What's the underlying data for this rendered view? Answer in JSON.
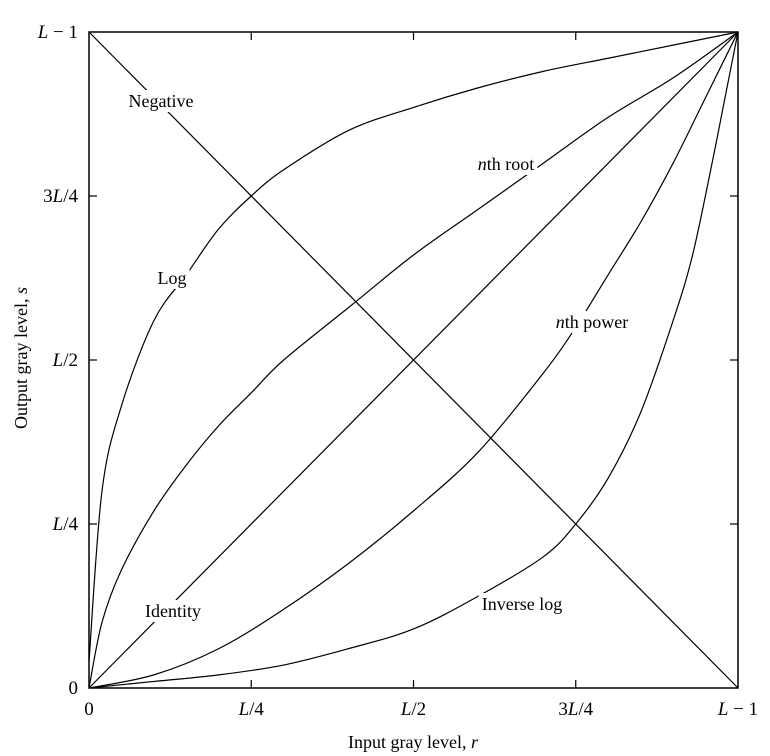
{
  "chart_data": {
    "type": "line",
    "xlabel": {
      "prefix": "Input gray level, ",
      "var": "r"
    },
    "ylabel": {
      "prefix": "Output gray level, ",
      "var": "s"
    },
    "xlim": [
      0,
      1
    ],
    "ylim": [
      0,
      1
    ],
    "x_ticks": [
      {
        "value": 0,
        "parts": [
          {
            "t": "0",
            "i": false
          }
        ]
      },
      {
        "value": 0.25,
        "parts": [
          {
            "t": "L",
            "i": true
          },
          {
            "t": "/4",
            "i": false
          }
        ]
      },
      {
        "value": 0.5,
        "parts": [
          {
            "t": "L",
            "i": true
          },
          {
            "t": "/2",
            "i": false
          }
        ]
      },
      {
        "value": 0.75,
        "parts": [
          {
            "t": "3",
            "i": false
          },
          {
            "t": "L",
            "i": true
          },
          {
            "t": "/4",
            "i": false
          }
        ]
      },
      {
        "value": 1,
        "parts": [
          {
            "t": "L",
            "i": true
          },
          {
            "t": " − 1",
            "i": false
          }
        ]
      }
    ],
    "y_ticks": [
      {
        "value": 0,
        "parts": [
          {
            "t": "0",
            "i": false
          }
        ]
      },
      {
        "value": 0.25,
        "parts": [
          {
            "t": "L",
            "i": true
          },
          {
            "t": "/4",
            "i": false
          }
        ]
      },
      {
        "value": 0.5,
        "parts": [
          {
            "t": "L",
            "i": true
          },
          {
            "t": "/2",
            "i": false
          }
        ]
      },
      {
        "value": 0.75,
        "parts": [
          {
            "t": "3",
            "i": false
          },
          {
            "t": "L",
            "i": true
          },
          {
            "t": "/4",
            "i": false
          }
        ]
      },
      {
        "value": 1,
        "parts": [
          {
            "t": "L",
            "i": true
          },
          {
            "t": " − 1",
            "i": false
          }
        ]
      }
    ],
    "series": [
      {
        "name": "Negative",
        "label_parts": [
          {
            "t": "Negative",
            "i": false
          }
        ],
        "x": [
          0,
          1
        ],
        "y": [
          1,
          0
        ]
      },
      {
        "name": "Identity",
        "label_parts": [
          {
            "t": "Identity",
            "i": false
          }
        ],
        "x": [
          0,
          1
        ],
        "y": [
          0,
          1
        ]
      },
      {
        "name": "Log",
        "label_parts": [
          {
            "t": "Log",
            "i": false
          }
        ],
        "x": [
          0,
          0.02,
          0.05,
          0.1,
          0.15,
          0.2,
          0.25,
          0.3,
          0.4,
          0.5,
          0.6,
          0.7,
          0.8,
          0.9,
          1.0
        ],
        "y": [
          0.04,
          0.3,
          0.43,
          0.56,
          0.63,
          0.7,
          0.75,
          0.79,
          0.85,
          0.885,
          0.915,
          0.94,
          0.96,
          0.98,
          1.0
        ]
      },
      {
        "name": "nth root",
        "label_parts": [
          {
            "t": "n",
            "i": true
          },
          {
            "t": "th root",
            "i": false
          }
        ],
        "x": [
          0,
          0.02,
          0.05,
          0.1,
          0.15,
          0.2,
          0.25,
          0.3,
          0.4,
          0.5,
          0.6,
          0.7,
          0.8,
          0.9,
          1.0
        ],
        "y": [
          0,
          0.1,
          0.18,
          0.27,
          0.34,
          0.4,
          0.45,
          0.5,
          0.58,
          0.66,
          0.73,
          0.8,
          0.87,
          0.93,
          1.0
        ]
      },
      {
        "name": "nth power",
        "label_parts": [
          {
            "t": "n",
            "i": true
          },
          {
            "t": "th power",
            "i": false
          }
        ],
        "x": [
          0,
          0.1,
          0.2,
          0.3,
          0.4,
          0.5,
          0.6,
          0.7,
          0.75,
          0.8,
          0.85,
          0.9,
          0.95,
          1.0
        ],
        "y": [
          0,
          0.02,
          0.06,
          0.12,
          0.19,
          0.27,
          0.36,
          0.48,
          0.55,
          0.63,
          0.71,
          0.8,
          0.9,
          1.0
        ]
      },
      {
        "name": "Inverse log",
        "label_parts": [
          {
            "t": "Inverse log",
            "i": false
          }
        ],
        "x": [
          0,
          0.1,
          0.2,
          0.3,
          0.4,
          0.5,
          0.6,
          0.7,
          0.75,
          0.8,
          0.85,
          0.9,
          0.93,
          0.96,
          0.98,
          1.0
        ],
        "y": [
          0,
          0.01,
          0.02,
          0.035,
          0.06,
          0.09,
          0.14,
          0.2,
          0.25,
          0.32,
          0.42,
          0.56,
          0.66,
          0.8,
          0.9,
          1.0
        ]
      }
    ]
  }
}
